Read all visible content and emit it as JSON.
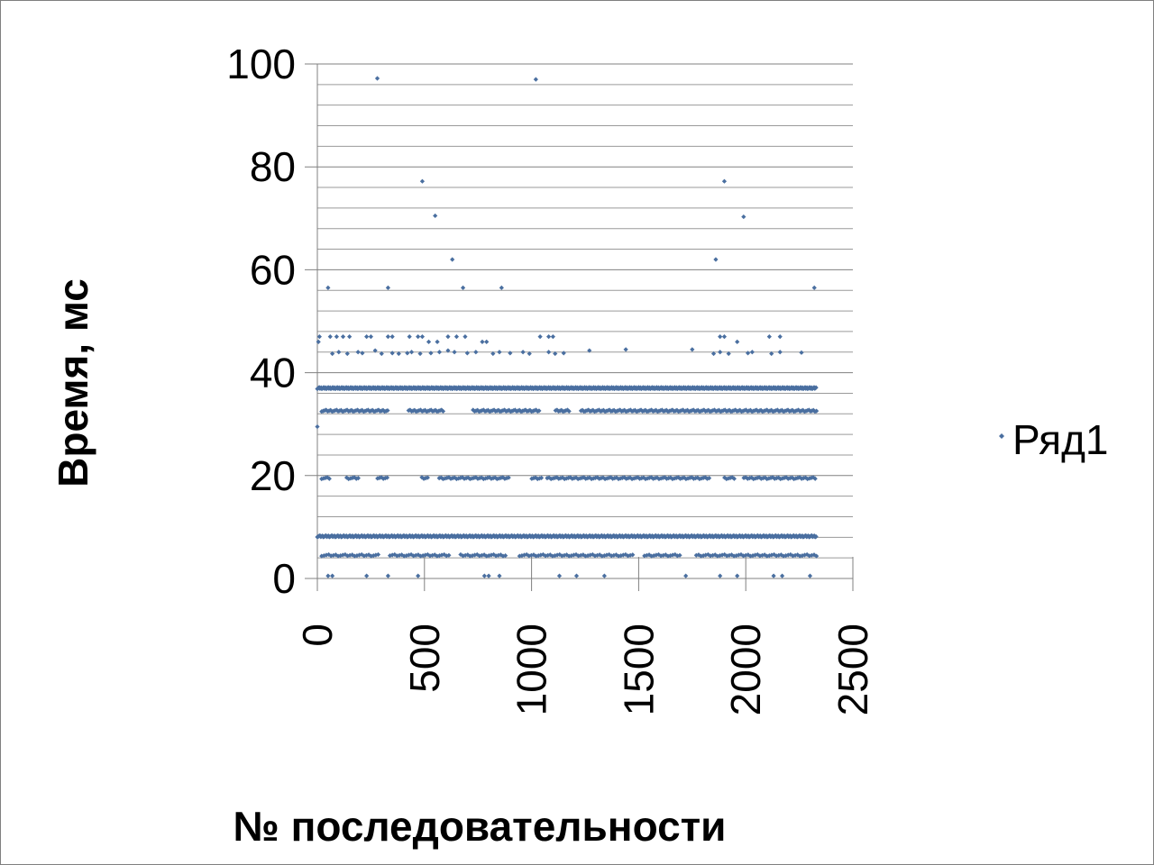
{
  "chart_data": {
    "type": "scatter",
    "xlabel": "№ последовательности",
    "ylabel": "Время, мс",
    "xlim": [
      0,
      2500
    ],
    "ylim": [
      0,
      100
    ],
    "x_ticks": [
      "0",
      "500",
      "1000",
      "1500",
      "2000",
      "2500"
    ],
    "y_ticks": [
      "0",
      "20",
      "40",
      "60",
      "80",
      "100"
    ],
    "y_major_step": 20,
    "y_minor_step": 4,
    "grid": "horizontal",
    "legend": {
      "position": "right",
      "entries": [
        "Ряд1"
      ]
    },
    "marker_color": "#4a6fa0",
    "series": [
      {
        "name": "Ряд1",
        "bands": [
          {
            "y": 37,
            "x_from": 0,
            "x_to": 2330,
            "step": 3
          },
          {
            "y": 8.2,
            "x_from": 0,
            "x_to": 2330,
            "step": 4
          },
          {
            "y": 32.6,
            "x_from": 20,
            "x_to": 2330,
            "step": 7,
            "gaps": [
              [
                330,
                420
              ],
              [
                590,
                720
              ],
              [
                1040,
                1110
              ],
              [
                1180,
                1230
              ]
            ]
          },
          {
            "y": 19.5,
            "x_from": 20,
            "x_to": 2330,
            "step": 9,
            "gaps": [
              [
                60,
                130
              ],
              [
                200,
                280
              ],
              [
                330,
                480
              ],
              [
                520,
                560
              ],
              [
                900,
                1000
              ],
              [
                1050,
                1070
              ],
              [
                1830,
                1900
              ],
              [
                1950,
                1990
              ]
            ]
          },
          {
            "y": 4.5,
            "x_from": 20,
            "x_to": 2330,
            "step": 11,
            "gaps": [
              [
                290,
                330
              ],
              [
                620,
                660
              ],
              [
                880,
                940
              ],
              [
                1480,
                1520
              ],
              [
                1700,
                1760
              ]
            ]
          }
        ],
        "points": [
          [
            280,
            97.2
          ],
          [
            1020,
            97.0
          ],
          [
            490,
            77.2
          ],
          [
            1900,
            77.2
          ],
          [
            550,
            70.5
          ],
          [
            1990,
            70.3
          ],
          [
            630,
            62.0
          ],
          [
            1860,
            62.0
          ],
          [
            50,
            56.5
          ],
          [
            330,
            56.5
          ],
          [
            680,
            56.5
          ],
          [
            860,
            56.5
          ],
          [
            2320,
            56.5
          ],
          [
            0,
            29.5
          ],
          [
            5,
            46
          ],
          [
            10,
            47
          ],
          [
            60,
            47
          ],
          [
            90,
            47
          ],
          [
            120,
            47
          ],
          [
            150,
            47
          ],
          [
            230,
            47
          ],
          [
            250,
            47
          ],
          [
            330,
            47
          ],
          [
            350,
            47
          ],
          [
            430,
            47
          ],
          [
            470,
            47
          ],
          [
            490,
            47
          ],
          [
            520,
            46
          ],
          [
            560,
            46
          ],
          [
            610,
            47
          ],
          [
            650,
            47
          ],
          [
            690,
            47
          ],
          [
            770,
            46
          ],
          [
            790,
            46
          ],
          [
            1040,
            47
          ],
          [
            1080,
            47
          ],
          [
            1100,
            47
          ],
          [
            1880,
            47
          ],
          [
            1900,
            47
          ],
          [
            1960,
            46
          ],
          [
            2110,
            47
          ],
          [
            2160,
            47
          ],
          [
            70,
            43.7
          ],
          [
            100,
            44
          ],
          [
            140,
            43.7
          ],
          [
            190,
            44
          ],
          [
            210,
            43.8
          ],
          [
            270,
            44.3
          ],
          [
            300,
            43.7
          ],
          [
            350,
            43.8
          ],
          [
            380,
            43.7
          ],
          [
            420,
            43.8
          ],
          [
            440,
            44
          ],
          [
            480,
            43.7
          ],
          [
            530,
            43.8
          ],
          [
            570,
            44
          ],
          [
            610,
            44.3
          ],
          [
            640,
            44
          ],
          [
            700,
            43.8
          ],
          [
            740,
            44
          ],
          [
            820,
            43.7
          ],
          [
            850,
            44
          ],
          [
            900,
            43.8
          ],
          [
            960,
            44
          ],
          [
            990,
            43.7
          ],
          [
            1080,
            44
          ],
          [
            1110,
            43.7
          ],
          [
            1150,
            43.8
          ],
          [
            1270,
            44.3
          ],
          [
            1440,
            44.5
          ],
          [
            1750,
            44.5
          ],
          [
            1850,
            43.7
          ],
          [
            1880,
            44
          ],
          [
            1920,
            43.7
          ],
          [
            2010,
            43.8
          ],
          [
            2030,
            44
          ],
          [
            2120,
            43.7
          ],
          [
            2160,
            44
          ],
          [
            2260,
            43.9
          ],
          [
            50,
            0.5
          ],
          [
            70,
            0.5
          ],
          [
            230,
            0.5
          ],
          [
            330,
            0.5
          ],
          [
            470,
            0.5
          ],
          [
            780,
            0.5
          ],
          [
            800,
            0.5
          ],
          [
            850,
            0.5
          ],
          [
            1130,
            0.5
          ],
          [
            1210,
            0.5
          ],
          [
            1340,
            0.5
          ],
          [
            1720,
            0.5
          ],
          [
            1880,
            0.5
          ],
          [
            1960,
            0.5
          ],
          [
            2130,
            0.5
          ],
          [
            2170,
            0.5
          ],
          [
            2300,
            0.5
          ]
        ]
      }
    ]
  }
}
